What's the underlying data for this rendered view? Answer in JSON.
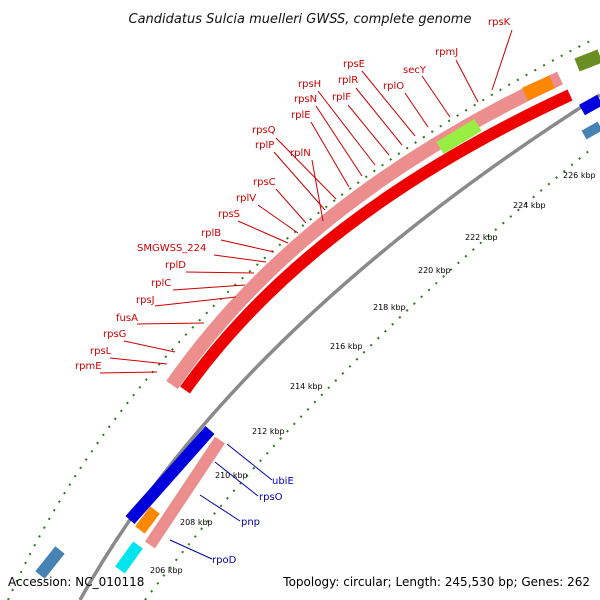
{
  "title": "Candidatus Sulcia muelleri GWSS, complete genome",
  "footer": {
    "accession": "Accession: NC_010118",
    "summary": "Topology: circular; Length: 245,530 bp; Genes: 262"
  },
  "colors": {
    "label_red": "#cc0000",
    "label_blue": "#0000aa",
    "rrna_pink": "#e88a8a",
    "cds_red": "#ee0000",
    "cds_blue": "#0000dd",
    "backbone": "#888888",
    "tick_green": "#2a7a1a",
    "lime": "#99ee44",
    "orange": "#ff8800",
    "olive": "#6b8e23",
    "cyan": "#00e5ee",
    "steelblue": "#4682b4"
  },
  "ticks": [
    "206 kbp",
    "208 kbp",
    "210 kbp",
    "212 kbp",
    "214 kbp",
    "216 kbp",
    "218 kbp",
    "220 kbp",
    "222 kbp",
    "224 kbp",
    "226 kbp"
  ],
  "red_labels": [
    "rpsK",
    "rpmJ",
    "secY",
    "rplO",
    "rpsE",
    "rplR",
    "rplF",
    "rpsH",
    "rpsN",
    "rplE",
    "rpsQ",
    "rplP",
    "rplN",
    "rpsC",
    "rplV",
    "rpsS",
    "rplB",
    "SMGWSS_224",
    "rplD",
    "rplC",
    "rpsJ",
    "fusA",
    "rpsG",
    "rpsL",
    "rpmE"
  ],
  "blue_labels": [
    "ubiE",
    "rpsO",
    "pnp",
    "rpoD"
  ]
}
